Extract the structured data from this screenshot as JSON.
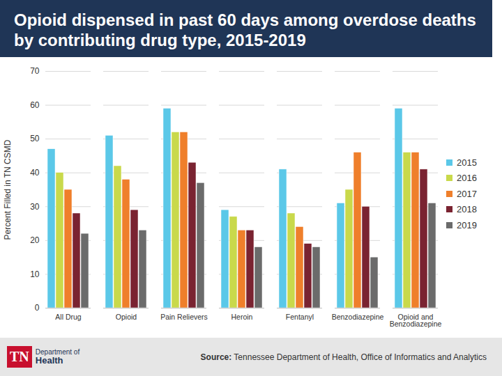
{
  "chart_data": {
    "type": "bar",
    "title": "Opioid dispensed in past 60 days among overdose deaths by contributing drug type, 2015-2019",
    "y_label": "Percent Filled in TN CSMD",
    "categories": [
      "All Drug",
      "Opioid",
      "Pain Relievers",
      "Heroin",
      "Fentanyl",
      "Benzodiazepine",
      "Opioid and Benzodiazepine"
    ],
    "series": [
      {
        "name": "2015",
        "color": "#5bc8e8",
        "values": [
          47,
          51,
          59,
          29,
          41,
          31,
          59
        ]
      },
      {
        "name": "2016",
        "color": "#c9d94b",
        "values": [
          40,
          42,
          52,
          27,
          28,
          35,
          46
        ]
      },
      {
        "name": "2017",
        "color": "#ef7f2b",
        "values": [
          35,
          38,
          52,
          23,
          24,
          46,
          46
        ]
      },
      {
        "name": "2018",
        "color": "#7a2331",
        "values": [
          28,
          29,
          43,
          23,
          19,
          30,
          41
        ]
      },
      {
        "name": "2019",
        "color": "#6b6b6b",
        "values": [
          22,
          23,
          37,
          18,
          18,
          15,
          31
        ]
      }
    ],
    "ylim": [
      0,
      70
    ],
    "yticks": [
      0,
      10,
      20,
      30,
      40,
      50,
      60,
      70
    ],
    "grid": true,
    "legend": "right",
    "source_label": "Source:",
    "source": "Tennessee Department of Health, Office of Informatics and Analytics",
    "logo": [
      "TN",
      "Department of",
      "Health"
    ]
  }
}
